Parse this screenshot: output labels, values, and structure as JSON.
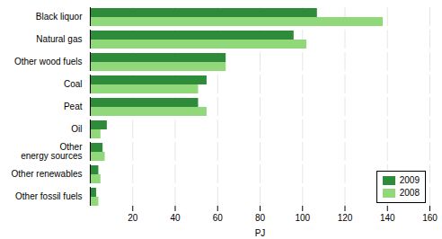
{
  "chart_data": {
    "type": "bar",
    "orientation": "horizontal",
    "categories": [
      "Black liquor",
      "Natural gas",
      "Other wood fuels",
      "Coal",
      "Peat",
      "Oil",
      "Other\nenergy sources",
      "Other renewables",
      "Other fossil fuels"
    ],
    "series": [
      {
        "name": "2009",
        "color": "#2e8b3a",
        "values": [
          107,
          96,
          64,
          55,
          51,
          8,
          6,
          4,
          3
        ]
      },
      {
        "name": "2008",
        "color": "#90d87a",
        "values": [
          138,
          102,
          64,
          51,
          55,
          5,
          7,
          5,
          4
        ]
      }
    ],
    "xlabel": "PJ",
    "xlim": [
      0,
      160
    ],
    "xticks": [
      20,
      40,
      60,
      80,
      100,
      120,
      140,
      160
    ],
    "grid": true,
    "legend": "lower right"
  }
}
